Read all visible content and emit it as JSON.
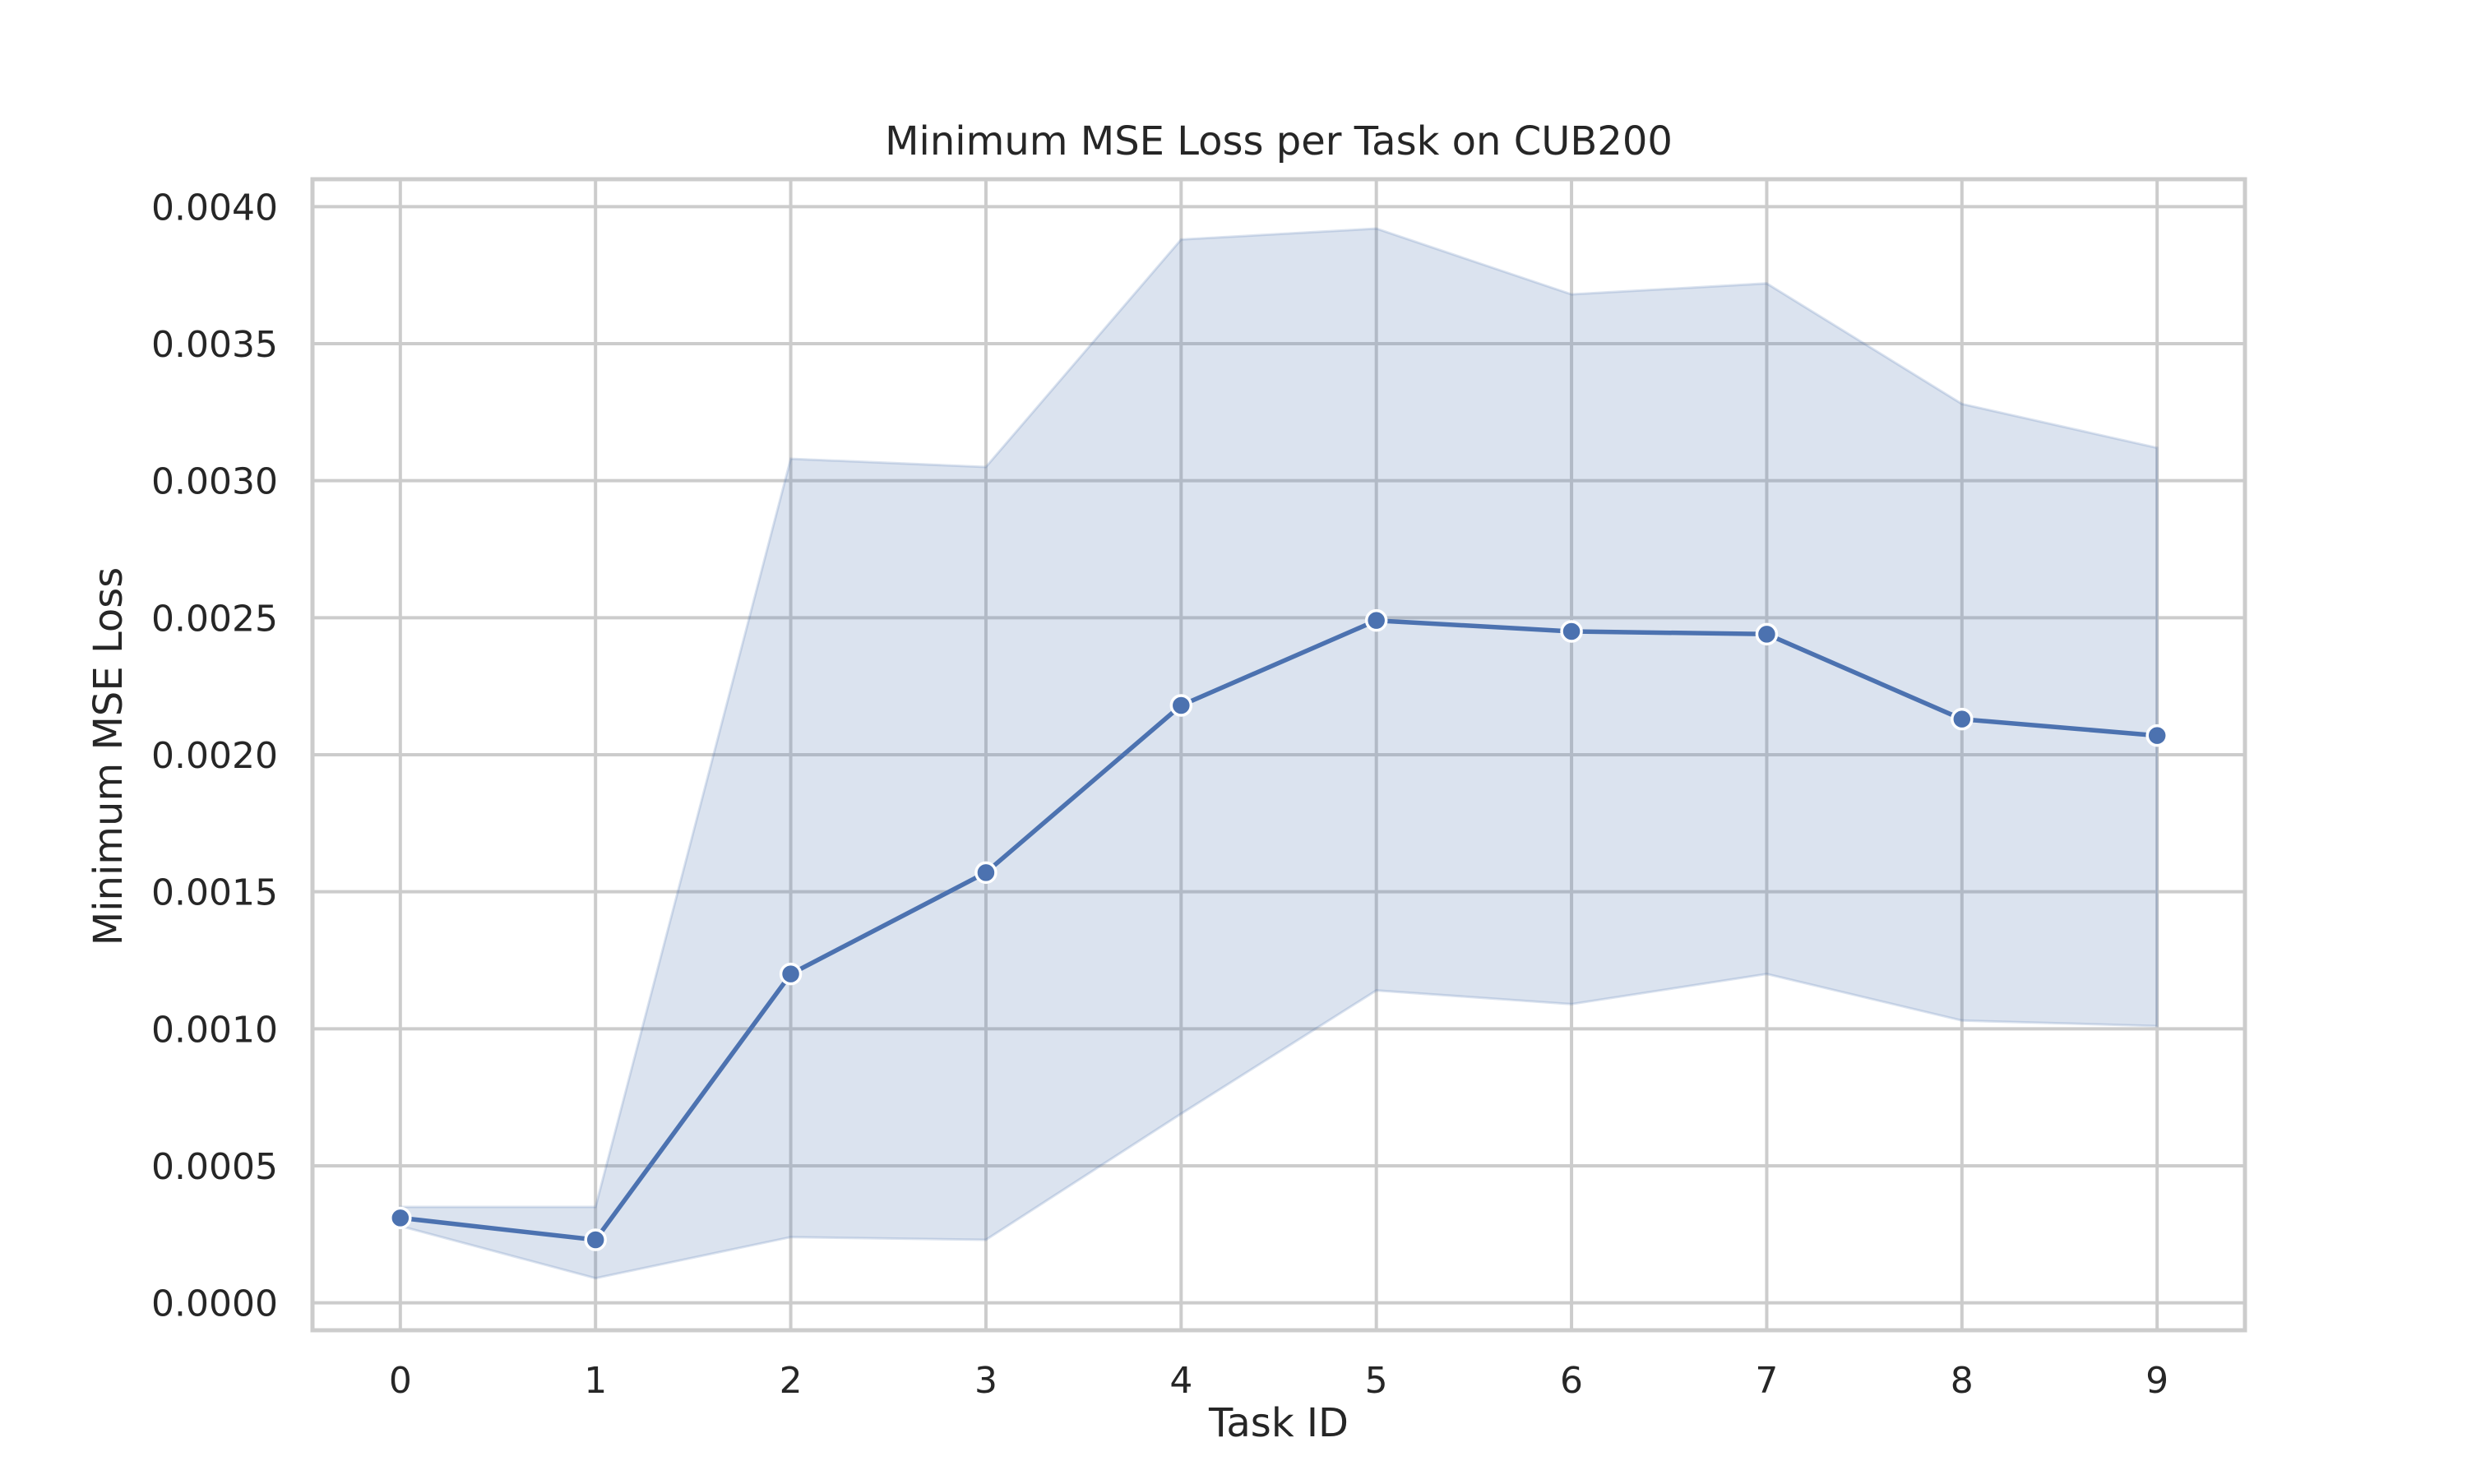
{
  "chart_data": {
    "type": "line",
    "title": "Minimum MSE Loss per Task on CUB200",
    "xlabel": "Task ID",
    "ylabel": "Minimum MSE Loss",
    "x": [
      0,
      1,
      2,
      3,
      4,
      5,
      6,
      7,
      8,
      9
    ],
    "x_ticks": [
      "0",
      "1",
      "2",
      "3",
      "4",
      "5",
      "6",
      "7",
      "8",
      "9"
    ],
    "xlim": [
      -0.45,
      9.45
    ],
    "ylim": [
      -0.0001,
      0.0041
    ],
    "y_ticks": [
      "0.0000",
      "0.0005",
      "0.0010",
      "0.0015",
      "0.0020",
      "0.0025",
      "0.0030",
      "0.0035",
      "0.0040"
    ],
    "y_tick_values": [
      0.0,
      0.0005,
      0.001,
      0.0015,
      0.002,
      0.0025,
      0.003,
      0.0035,
      0.004
    ],
    "series": [
      {
        "values": [
          0.00031,
          0.00023,
          0.0012,
          0.00157,
          0.00218,
          0.00249,
          0.00245,
          0.00244,
          0.00213,
          0.00207
        ],
        "band_upper": [
          0.00035,
          0.00035,
          0.00308,
          0.00305,
          0.00388,
          0.00392,
          0.00368,
          0.00372,
          0.00328,
          0.00312
        ],
        "band_lower": [
          0.00028,
          9e-05,
          0.00024,
          0.00023,
          0.00069,
          0.00114,
          0.00109,
          0.0012,
          0.00103,
          0.00101
        ],
        "color": "#4c72b0"
      }
    ],
    "grid": true,
    "legend": "none",
    "markers": "circle"
  }
}
